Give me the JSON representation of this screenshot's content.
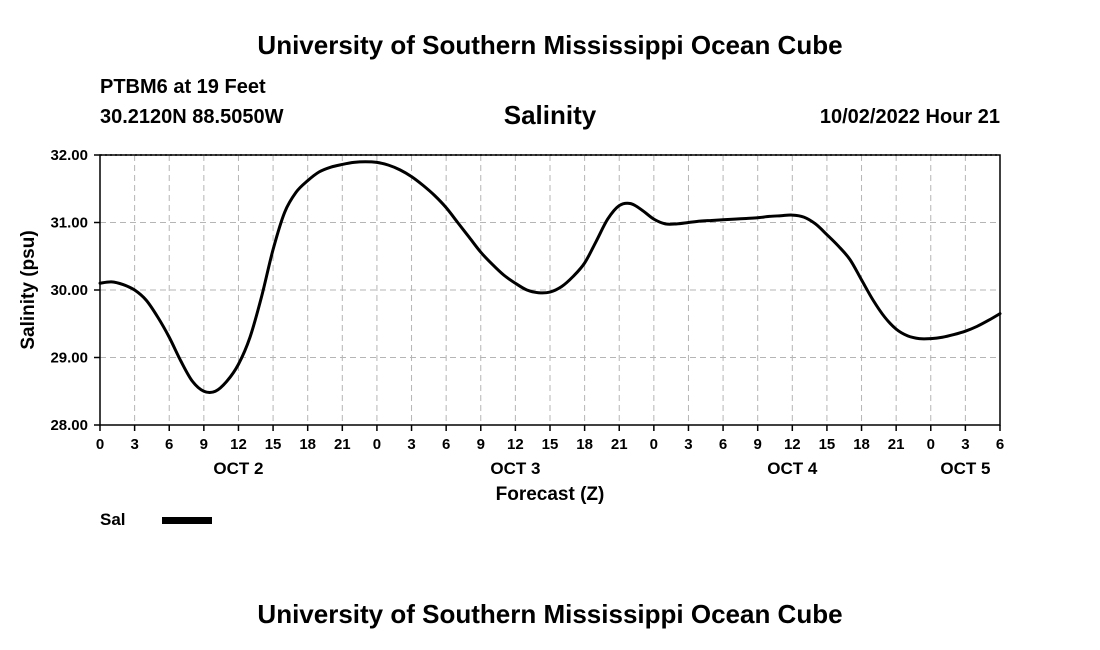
{
  "header": {
    "title": "University of Southern Mississippi Ocean Cube",
    "station": "PTBM6 at 19 Feet",
    "coordinates": "30.2120N  88.5050W",
    "variable": "Salinity",
    "timestamp": "10/02/2022 Hour 21"
  },
  "footer": {
    "title": "University of Southern Mississippi Ocean Cube"
  },
  "legend": {
    "label": "Sal",
    "color": "#000000"
  },
  "chart_data": {
    "type": "line",
    "title": "Salinity",
    "xlabel": "Forecast (Z)",
    "ylabel": "Salinity (psu)",
    "ylim": [
      28,
      32
    ],
    "xlim": [
      0,
      78
    ],
    "y_ticks": [
      "28.00",
      "29.00",
      "30.00",
      "31.00",
      "32.00"
    ],
    "x_tick_labels": [
      "0",
      "3",
      "6",
      "9",
      "12",
      "15",
      "18",
      "21",
      "0",
      "3",
      "6",
      "9",
      "12",
      "15",
      "18",
      "21",
      "0",
      "3",
      "6",
      "9",
      "12",
      "15",
      "18",
      "21",
      "0",
      "3",
      "6"
    ],
    "date_labels": [
      {
        "label": "OCT 2",
        "hours": 12
      },
      {
        "label": "OCT 3",
        "hours": 36
      },
      {
        "label": "OCT 4",
        "hours": 60
      },
      {
        "label": "OCT 5",
        "hours": 75
      }
    ],
    "grid": true,
    "series": [
      {
        "name": "Sal",
        "color": "#000000",
        "x": [
          0,
          1,
          2,
          3,
          4,
          5,
          6,
          7,
          8,
          9,
          10,
          11,
          12,
          13,
          14,
          15,
          16,
          17,
          18,
          19,
          20,
          21,
          22,
          23,
          24,
          25,
          26,
          27,
          28,
          29,
          30,
          31,
          32,
          33,
          34,
          35,
          36,
          37,
          38,
          39,
          40,
          41,
          42,
          43,
          44,
          45,
          46,
          47,
          48,
          49,
          50,
          51,
          52,
          53,
          54,
          55,
          56,
          57,
          58,
          59,
          60,
          61,
          62,
          63,
          64,
          65,
          66,
          67,
          68,
          69,
          70,
          71,
          72,
          73,
          74,
          75,
          76,
          77,
          78
        ],
        "y": [
          30.1,
          30.12,
          30.08,
          30.0,
          29.85,
          29.6,
          29.3,
          28.95,
          28.65,
          28.5,
          28.5,
          28.65,
          28.9,
          29.3,
          29.9,
          30.6,
          31.15,
          31.45,
          31.62,
          31.75,
          31.82,
          31.86,
          31.89,
          31.9,
          31.89,
          31.85,
          31.78,
          31.68,
          31.55,
          31.4,
          31.22,
          31.0,
          30.78,
          30.56,
          30.38,
          30.22,
          30.1,
          30.0,
          29.96,
          29.97,
          30.05,
          30.2,
          30.4,
          30.72,
          31.05,
          31.25,
          31.28,
          31.18,
          31.05,
          30.98,
          30.98,
          31.0,
          31.02,
          31.03,
          31.04,
          31.05,
          31.06,
          31.07,
          31.09,
          31.1,
          31.11,
          31.08,
          30.98,
          30.82,
          30.65,
          30.45,
          30.15,
          29.85,
          29.6,
          29.42,
          29.32,
          29.28,
          29.28,
          29.3,
          29.34,
          29.39,
          29.46,
          29.55,
          29.65
        ]
      }
    ]
  }
}
